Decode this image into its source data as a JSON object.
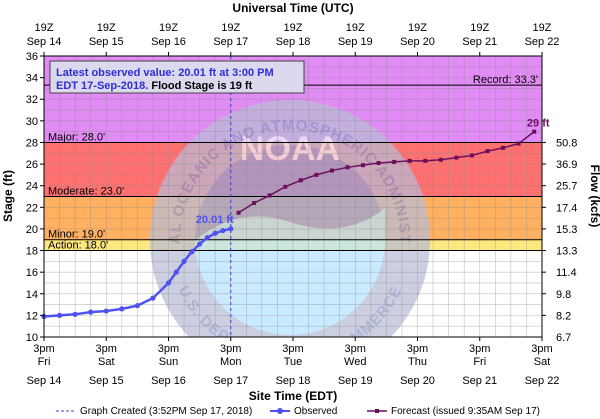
{
  "colors": {
    "record_band": "#e08cf4",
    "major_band": "#ff7070",
    "moderate_band": "#ffb060",
    "minor_band": "#ffe880",
    "action_band": "#ffff88",
    "normal_band": "#ffffff",
    "observed": "#4d52f0",
    "forecast": "#6b0f5c",
    "box_text": "#2e2ed8",
    "box_bg": "#dcd8ee",
    "logo_ring": "#b9bdd6",
    "logo_inner": "#96a4da",
    "logo_water": "#b6e4ff"
  },
  "chart_data": {
    "type": "line",
    "top_axis_title": "Universal Time (UTC)",
    "bottom_axis_title": "Site Time (EDT)",
    "ylabel_left": "Stage (ft)",
    "ylabel_right": "Flow (kcfs)",
    "ylim": [
      10,
      36
    ],
    "yticks_left": [
      10,
      12,
      14,
      16,
      18,
      20,
      22,
      24,
      26,
      28,
      30,
      32,
      34,
      36
    ],
    "yticks_right": [
      {
        "stage": 12,
        "label": "8.2"
      },
      {
        "stage": 14,
        "label": "9.8"
      },
      {
        "stage": 16,
        "label": "11.4"
      },
      {
        "stage": 18,
        "label": "13.3"
      },
      {
        "stage": 20,
        "label": "15.3"
      },
      {
        "stage": 22,
        "label": "17.4"
      },
      {
        "stage": 24,
        "label": "25.7"
      },
      {
        "stage": 26,
        "label": "36.9"
      },
      {
        "stage": 28,
        "label": "50.8"
      }
    ],
    "flow_bottom_label": "6.7",
    "xlim": [
      "Sep 14 3pm",
      "Sep 22 3pm"
    ],
    "bottom_ticks": [
      {
        "time": "3pm",
        "day": "Fri",
        "date": "Sep 14"
      },
      {
        "time": "3pm",
        "day": "Sat",
        "date": "Sep 15"
      },
      {
        "time": "3pm",
        "day": "Sun",
        "date": "Sep 16"
      },
      {
        "time": "3pm",
        "day": "Mon",
        "date": "Sep 17"
      },
      {
        "time": "3pm",
        "day": "Tue",
        "date": "Sep 18"
      },
      {
        "time": "3pm",
        "day": "Wed",
        "date": "Sep 19"
      },
      {
        "time": "3pm",
        "day": "Thu",
        "date": "Sep 20"
      },
      {
        "time": "3pm",
        "day": "Fri",
        "date": "Sep 21"
      },
      {
        "time": "3pm",
        "day": "Sat",
        "date": "Sep 22"
      }
    ],
    "top_ticks": [
      {
        "time": "19Z",
        "date": "Sep 14"
      },
      {
        "time": "19Z",
        "date": "Sep 15"
      },
      {
        "time": "19Z",
        "date": "Sep 16"
      },
      {
        "time": "19Z",
        "date": "Sep 17"
      },
      {
        "time": "19Z",
        "date": "Sep 18"
      },
      {
        "time": "19Z",
        "date": "Sep 19"
      },
      {
        "time": "19Z",
        "date": "Sep 20"
      },
      {
        "time": "19Z",
        "date": "Sep 21"
      },
      {
        "time": "19Z",
        "date": "Sep 22"
      }
    ],
    "flood_levels": [
      {
        "name": "Record",
        "label": "Record: 33.3'",
        "stage": 33.3
      },
      {
        "name": "Major",
        "label": "Major: 28.0'",
        "stage": 28.0
      },
      {
        "name": "Moderate",
        "label": "Moderate: 23.0'",
        "stage": 23.0
      },
      {
        "name": "Minor",
        "label": "Minor: 19.0'",
        "stage": 19.0
      },
      {
        "name": "Action",
        "label": "Action: 18.0'",
        "stage": 18.0
      }
    ],
    "observed": {
      "name": "Observed",
      "x_days": [
        0.0,
        0.25,
        0.5,
        0.75,
        1.0,
        1.25,
        1.5,
        1.75,
        2.0,
        2.125,
        2.25,
        2.375,
        2.5,
        2.625,
        2.75,
        2.875,
        3.0
      ],
      "y": [
        11.9,
        12.0,
        12.1,
        12.3,
        12.4,
        12.6,
        12.9,
        13.6,
        15.0,
        16.0,
        17.0,
        17.9,
        18.6,
        19.2,
        19.6,
        19.85,
        20.01
      ]
    },
    "forecast": {
      "name": "Forecast",
      "x_days": [
        3.125,
        3.375,
        3.625,
        3.875,
        4.125,
        4.375,
        4.625,
        4.875,
        5.125,
        5.375,
        5.625,
        5.875,
        6.125,
        6.375,
        6.625,
        6.875,
        7.125,
        7.375,
        7.625,
        7.875
      ],
      "y": [
        21.5,
        22.4,
        23.1,
        23.9,
        24.5,
        25.0,
        25.4,
        25.7,
        25.9,
        26.1,
        26.2,
        26.3,
        26.3,
        26.4,
        26.6,
        26.8,
        27.2,
        27.5,
        27.9,
        29.0
      ]
    },
    "observed_label": "20.01 ft",
    "forecast_label": "29 ft",
    "graph_created_x_days": 3.0,
    "info_box": {
      "line1": "Latest observed value: 20.01 ft at 3:00 PM",
      "line2a": "EDT 17-Sep-2018.",
      "line2b": " Flood Stage is 19 ft"
    },
    "legend": {
      "created": "Graph Created (3:52PM Sep 17, 2018)",
      "observed": "Observed",
      "forecast": "Forecast (issued 9:35AM Sep 17)"
    },
    "watermark": {
      "logo": "NOAA",
      "ring_top": "NATIONAL OCEANIC AND ATMOSPHERIC ADMINISTRATION",
      "ring_bottom": "U.S. DEPARTMENT OF COMMERCE"
    },
    "grid": true
  }
}
